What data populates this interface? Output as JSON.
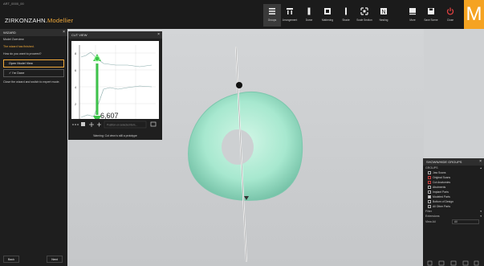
{
  "app": {
    "title_small": "ART_0000_00",
    "title_brand": "ZIRKONZAHN.",
    "title_module": "Modellier",
    "logo_letter": "M"
  },
  "toolbar": {
    "items": [
      {
        "label": "Groups",
        "icon": "groups-icon",
        "active": true
      },
      {
        "label": "Arrangement",
        "icon": "arrangement-icon",
        "active": false
      },
      {
        "label": "Dome",
        "icon": "dome-icon",
        "active": false
      },
      {
        "label": "Mattening",
        "icon": "mattening-icon",
        "active": false
      },
      {
        "label": "Shade",
        "icon": "shade-icon",
        "active": false
      },
      {
        "label": "Scale Section",
        "icon": "scale-section-icon",
        "active": false
      },
      {
        "label": "Nesting",
        "icon": "nesting-icon",
        "active": false
      },
      {
        "label": "More",
        "icon": "more-icon",
        "active": false
      },
      {
        "label": "Save Scene",
        "icon": "save-icon",
        "active": false
      },
      {
        "label": "Close",
        "icon": "power-icon",
        "active": false
      }
    ]
  },
  "wizard": {
    "title": "WIZARD",
    "step": "Model Overview",
    "status": "The wizard has finished.",
    "question": "How do you want to proceed?",
    "button_main": "Open Model View",
    "button_done": "I'm Done",
    "note": "Close the wizard and switch to expert mode.",
    "back_label": "Back",
    "next_label": "Next"
  },
  "cut_view": {
    "title": "CUT VIEW",
    "measurement": "6,607",
    "tick_labels_y": [
      "8",
      "6",
      "4",
      "2",
      "0"
    ],
    "tick_labels_x": [
      "0",
      "1",
      "2",
      "3",
      "4",
      "5",
      "6",
      "7",
      "8",
      "9"
    ],
    "search_placeholder": "Position on selected item...",
    "warning": "Warning: Cut view is still a prototype"
  },
  "groups": {
    "title": "SHOWN/HIDE GROUPS",
    "section_label": "GROUPS",
    "items": [
      {
        "label": "Jaw Scans",
        "checked": false,
        "red": false
      },
      {
        "label": "Original Scans",
        "checked": false,
        "red": true
      },
      {
        "label": "Cut Anatomies",
        "checked": false,
        "red": true
      },
      {
        "label": "Abutments",
        "checked": false,
        "red": false
      },
      {
        "label": "Implant Parts",
        "checked": false,
        "red": false
      },
      {
        "label": "Modeled Parts",
        "checked": true,
        "red": false
      },
      {
        "label": "Bottom of Design",
        "checked": false,
        "red": false
      },
      {
        "label": "All Other Parts",
        "checked": false,
        "red": false
      }
    ],
    "filter_label": "Filter",
    "ext_label": "Extensions",
    "view_label": "View All",
    "view_value": "All"
  },
  "colors": {
    "accent": "#f5a322",
    "model": "#a7e8cf",
    "panel_bg": "#1e1e1e"
  }
}
